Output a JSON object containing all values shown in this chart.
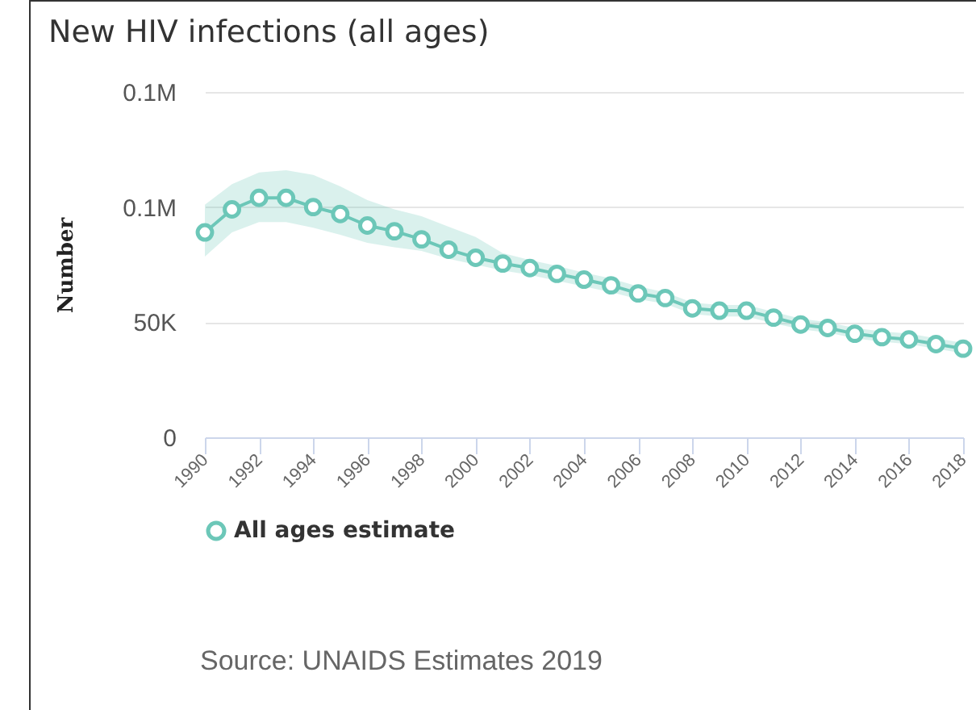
{
  "chart_data": {
    "type": "line",
    "title": "New HIV infections (all ages)",
    "ylabel": "Number",
    "x": [
      1990,
      1991,
      1992,
      1993,
      1994,
      1995,
      1996,
      1997,
      1998,
      1999,
      2000,
      2001,
      2002,
      2003,
      2004,
      2005,
      2006,
      2007,
      2008,
      2009,
      2010,
      2011,
      2012,
      2013,
      2014,
      2015,
      2016,
      2017,
      2018
    ],
    "series": [
      {
        "name": "All ages estimate",
        "color": "#6cc7b8",
        "values": [
          89000,
          99000,
          104000,
          104000,
          100000,
          97000,
          92000,
          89500,
          86000,
          81500,
          78000,
          75500,
          73500,
          71000,
          68500,
          66000,
          62500,
          60500,
          56000,
          55000,
          55000,
          52000,
          49000,
          47500,
          45000,
          43500,
          42500,
          40500,
          38500
        ],
        "lower": [
          78500,
          89000,
          93500,
          93500,
          91000,
          88000,
          84500,
          82500,
          81000,
          77500,
          75000,
          72500,
          70500,
          68000,
          65500,
          63000,
          60000,
          58000,
          53500,
          52500,
          52500,
          49500,
          47000,
          45500,
          43000,
          41500,
          40500,
          38500,
          36500
        ],
        "upper": [
          101000,
          110000,
          115000,
          116000,
          114000,
          109000,
          103000,
          99000,
          96000,
          91500,
          87000,
          80000,
          77000,
          74500,
          71500,
          69000,
          65500,
          63000,
          58500,
          57500,
          57500,
          54500,
          51500,
          50000,
          47500,
          46000,
          45000,
          43000,
          41000
        ]
      }
    ],
    "xlim": [
      1990,
      2018
    ],
    "xticks": [
      1990,
      1992,
      1994,
      1996,
      1998,
      2000,
      2002,
      2004,
      2006,
      2008,
      2010,
      2012,
      2014,
      2016,
      2018
    ],
    "ylim": [
      0,
      150000
    ],
    "yticks": [
      0,
      {
        "value": 50000,
        "label": "50K"
      },
      {
        "value": 100000,
        "label": "0.1M"
      },
      {
        "value": 150000,
        "label": "0.1M"
      }
    ],
    "grid": "y",
    "legend": "bottom",
    "marker": "circle",
    "annotations": [
      "Source: UNAIDS Estimates 2019"
    ]
  }
}
